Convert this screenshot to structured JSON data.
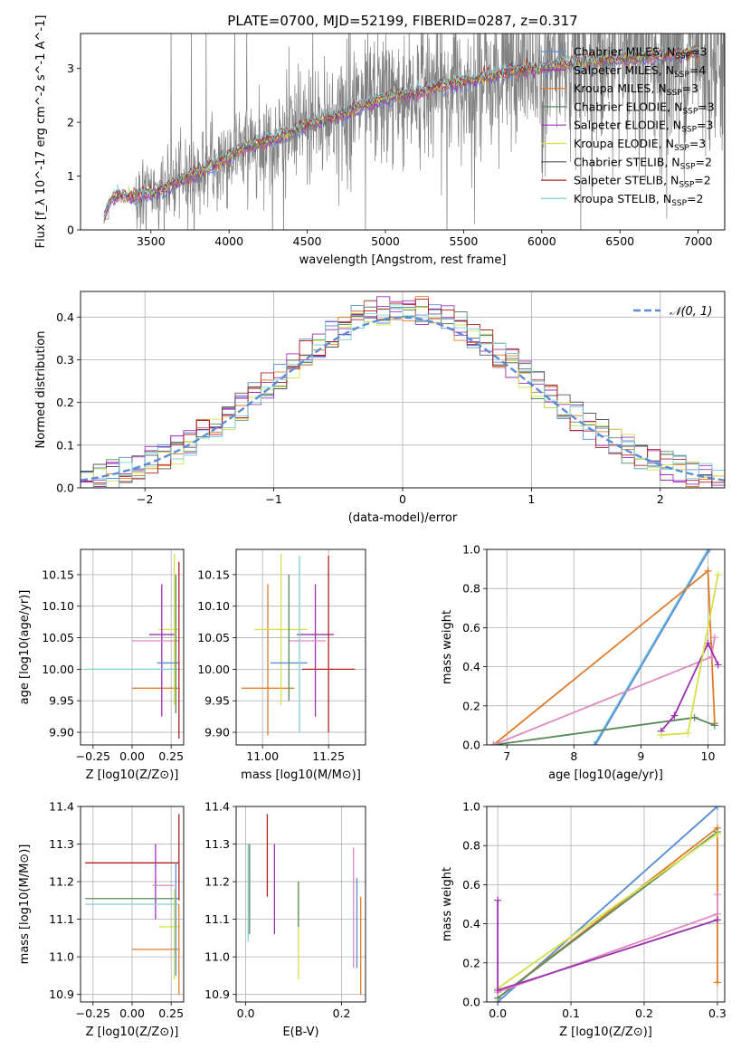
{
  "chart_data": [
    {
      "id": "spectrum",
      "type": "line",
      "title": "PLATE=0700, MJD=52199, FIBERID=0287, z=0.317",
      "xlabel": "wavelength [Angstrom, rest frame]",
      "ylabel": "Flux [f_λ 10^-17 erg cm^-2 s^-1 A^-1]",
      "xlim": [
        3050,
        7170
      ],
      "ylim": [
        0,
        3.65
      ],
      "xticks": [
        3500,
        4000,
        4500,
        5000,
        5500,
        6000,
        6500,
        7000
      ],
      "yticks": [
        0,
        1,
        2,
        3
      ],
      "grid": false,
      "legend_position": "upper right",
      "data_color": "#808080",
      "series": [
        {
          "name": "Chabrier MILES, N_SSP=3",
          "color": "#5b8cd6"
        },
        {
          "name": "Salpeter MILES, N_SSP=4",
          "color": "#9b30b0"
        },
        {
          "name": "Kroupa MILES, N_SSP=3",
          "color": "#e07b2a"
        },
        {
          "name": "Chabrier ELODIE, N_SSP=3",
          "color": "#5a8a5a"
        },
        {
          "name": "Salpeter ELODIE, N_SSP=3",
          "color": "#a030c0"
        },
        {
          "name": "Kroupa ELODIE, N_SSP=3",
          "color": "#d4e04a"
        },
        {
          "name": "Chabrier STELIB, N_SSP=2",
          "color": "#555555"
        },
        {
          "name": "Salpeter STELIB, N_SSP=2",
          "color": "#b02020"
        },
        {
          "name": "Kroupa STELIB, N_SSP=2",
          "color": "#7fd0d6"
        }
      ],
      "model_continuum": {
        "x": [
          3200,
          3250,
          3300,
          3400,
          3500,
          3600,
          3700,
          3800,
          3900,
          4000,
          4100,
          4200,
          4300,
          4400,
          4500,
          4600,
          4700,
          4800,
          4900,
          5000,
          5200,
          5400,
          5600,
          5800,
          6000,
          6200,
          6400,
          6600,
          6800,
          7000
        ],
        "y": [
          0.25,
          0.6,
          0.65,
          0.62,
          0.68,
          0.8,
          0.95,
          1.05,
          1.2,
          1.35,
          1.55,
          1.62,
          1.7,
          1.8,
          1.95,
          2.05,
          2.1,
          2.25,
          2.35,
          2.45,
          2.55,
          2.7,
          2.8,
          2.95,
          3.0,
          3.1,
          3.15,
          3.2,
          3.25,
          3.3
        ]
      }
    },
    {
      "id": "residuals",
      "type": "line",
      "xlabel": "(data-model)/error",
      "ylabel": "Normed distribution",
      "xlim": [
        -2.5,
        2.5
      ],
      "ylim": [
        0,
        0.46
      ],
      "xticks": [
        -2,
        -1,
        0,
        1,
        2
      ],
      "yticks": [
        0.0,
        0.1,
        0.2,
        0.3,
        0.4
      ],
      "grid": true,
      "legend_position": "upper right",
      "gaussian": {
        "name": "𝒩(0, 1)",
        "color": "#5b8cd6"
      },
      "histogram_bin_width": 0.1
    },
    {
      "id": "age_vs_Z",
      "type": "scatter",
      "xlabel": "Z [log10(Z/Z⊙)]",
      "ylabel": "age [log10(age/yr)]",
      "xlim": [
        -0.33,
        0.33
      ],
      "ylim": [
        9.88,
        10.19
      ],
      "xticks": [
        -0.25,
        0.0,
        0.25
      ],
      "yticks": [
        9.9,
        9.95,
        10.0,
        10.05,
        10.1,
        10.15
      ],
      "grid": true,
      "points": [
        {
          "color": "#e07b2a",
          "x": 0.15,
          "xerr": [
            0.15,
            0.15
          ],
          "y": 9.97,
          "yerr": [
            0.0,
            0.0
          ]
        },
        {
          "color": "#d4e04a",
          "x": 0.27,
          "xerr": [
            0.1,
            0.03
          ],
          "y": 10.063,
          "yerr": [
            0.12,
            0.12
          ]
        },
        {
          "color": "#9b30b0",
          "x": 0.19,
          "xerr": [
            0.08,
            0.08
          ],
          "y": 10.055,
          "yerr": [
            0.13,
            0.08
          ]
        },
        {
          "color": "#e088c0",
          "x": 0.15,
          "xerr": [
            0.15,
            0.15
          ],
          "y": 10.045,
          "yerr": [
            0.0,
            0.0
          ]
        },
        {
          "color": "#5b8cd6",
          "x": 0.23,
          "xerr": [
            0.07,
            0.07
          ],
          "y": 10.01,
          "yerr": [
            0.0,
            0.0
          ]
        },
        {
          "color": "#7fd0d6",
          "x": 0.0,
          "xerr": [
            0.3,
            0.3
          ],
          "y": 10.0,
          "yerr": [
            0.0,
            0.0
          ]
        },
        {
          "color": "#5a8a5a",
          "x": 0.28,
          "xerr": [
            0.0,
            0.0
          ],
          "y": 10.04,
          "yerr": [
            0.11,
            0.11
          ]
        },
        {
          "color": "#b02020",
          "x": 0.3,
          "xerr": [
            0.0,
            0.0
          ],
          "y": 10.03,
          "yerr": [
            0.14,
            0.14
          ]
        }
      ]
    },
    {
      "id": "age_vs_mass",
      "type": "scatter",
      "xlabel": "mass [log10(M/M⊙)]",
      "xlim": [
        10.9,
        11.39
      ],
      "ylim": [
        9.88,
        10.19
      ],
      "xticks": [
        11.0,
        11.25
      ],
      "yticks": [
        9.9,
        9.95,
        10.0,
        10.05,
        10.1,
        10.15
      ],
      "grid": true,
      "points": [
        {
          "color": "#e07b2a",
          "x": 11.02,
          "xerr": [
            0.1,
            0.1
          ],
          "y": 9.97,
          "yerr": [
            0.075,
            0.165
          ]
        },
        {
          "color": "#d4e04a",
          "x": 11.07,
          "xerr": [
            0.1,
            0.1
          ],
          "y": 10.063,
          "yerr": [
            0.12,
            0.12
          ]
        },
        {
          "color": "#9b30b0",
          "x": 11.2,
          "xerr": [
            0.07,
            0.07
          ],
          "y": 10.055,
          "yerr": [
            0.13,
            0.08
          ]
        },
        {
          "color": "#e088c0",
          "x": 11.17,
          "xerr": [
            0.07,
            0.07
          ],
          "y": 10.045,
          "yerr": [
            0.0,
            0.0
          ]
        },
        {
          "color": "#5b8cd6",
          "x": 11.1,
          "xerr": [
            0.07,
            0.07
          ],
          "y": 10.01,
          "yerr": [
            0.0,
            0.0
          ]
        },
        {
          "color": "#7fd0d6",
          "x": 11.14,
          "xerr": [
            0.0,
            0.0
          ],
          "y": 10.04,
          "yerr": [
            0.14,
            0.14
          ]
        },
        {
          "color": "#5a8a5a",
          "x": 11.1,
          "xerr": [
            0.0,
            0.0
          ],
          "y": 10.05,
          "yerr": [
            0.1,
            0.1
          ]
        },
        {
          "color": "#b02020",
          "x": 11.25,
          "xerr": [
            0.1,
            0.1
          ],
          "y": 10.0,
          "yerr": [
            0.1,
            0.18
          ]
        }
      ]
    },
    {
      "id": "massweight_vs_age",
      "type": "line",
      "xlabel": "age [log10(age/yr)]",
      "ylabel": "mass weight",
      "xlim": [
        6.7,
        10.25
      ],
      "ylim": [
        0,
        1
      ],
      "xticks": [
        7,
        8,
        9,
        10
      ],
      "yticks": [
        0.0,
        0.2,
        0.4,
        0.6,
        0.8,
        1.0
      ],
      "grid": true,
      "series": [
        {
          "color": "#7fd0d6",
          "x": [
            8.3,
            10.0
          ],
          "y": [
            0.0,
            1.0
          ]
        },
        {
          "color": "#5b8cd6",
          "x": [
            8.32,
            10.02
          ],
          "y": [
            0.0,
            1.0
          ]
        },
        {
          "color": "#e07b2a",
          "x": [
            6.8,
            10.0,
            10.1
          ],
          "y": [
            0.0,
            0.89,
            0.11
          ]
        },
        {
          "color": "#5a8a5a",
          "x": [
            6.8,
            9.8,
            10.1
          ],
          "y": [
            0.0,
            0.14,
            0.1
          ]
        },
        {
          "color": "#e088c0",
          "x": [
            6.8,
            10.05,
            10.1
          ],
          "y": [
            0.0,
            0.45,
            0.55
          ]
        },
        {
          "color": "#9b30b0",
          "x": [
            9.3,
            9.5,
            10.0,
            10.15
          ],
          "y": [
            0.07,
            0.15,
            0.52,
            0.41
          ]
        },
        {
          "color": "#d4e04a",
          "x": [
            9.3,
            9.7,
            10.15
          ],
          "y": [
            0.05,
            0.06,
            0.87
          ]
        }
      ]
    },
    {
      "id": "mass_vs_Z",
      "type": "scatter",
      "xlabel": "Z [log10(Z/Z⊙)]",
      "ylabel": "mass [log10(M/M⊙)]",
      "xlim": [
        -0.33,
        0.33
      ],
      "ylim": [
        10.88,
        11.4
      ],
      "xticks": [
        -0.25,
        0.0,
        0.25
      ],
      "yticks": [
        10.9,
        11.0,
        11.1,
        11.2,
        11.3,
        11.4
      ],
      "grid": true,
      "points": [
        {
          "color": "#b02020",
          "x": 0.0,
          "xerr": [
            0.3,
            0.3
          ],
          "y": 11.25,
          "yerr": [
            0.0,
            0.0
          ]
        },
        {
          "color": "#b02020",
          "x": 0.3,
          "xerr": [
            0.0,
            0.0
          ],
          "y": 11.25,
          "yerr": [
            0.1,
            0.13
          ]
        },
        {
          "color": "#9b30b0",
          "x": 0.15,
          "xerr": [
            0.0,
            0.0
          ],
          "y": 11.2,
          "yerr": [
            0.1,
            0.1
          ]
        },
        {
          "color": "#e088c0",
          "x": 0.2,
          "xerr": [
            0.07,
            0.07
          ],
          "y": 11.19,
          "yerr": [
            0.0,
            0.0
          ]
        },
        {
          "color": "#5a8a5a",
          "x": 0.0,
          "xerr": [
            0.3,
            0.3
          ],
          "y": 11.155,
          "yerr": [
            0.0,
            0.0
          ]
        },
        {
          "color": "#7fd0d6",
          "x": 0.0,
          "xerr": [
            0.3,
            0.3
          ],
          "y": 11.14,
          "yerr": [
            0.0,
            0.0
          ]
        },
        {
          "color": "#d4e04a",
          "x": 0.27,
          "xerr": [
            0.1,
            0.03
          ],
          "y": 11.08,
          "yerr": [
            0.14,
            0.1
          ]
        },
        {
          "color": "#e07b2a",
          "x": 0.15,
          "xerr": [
            0.15,
            0.15
          ],
          "y": 11.02,
          "yerr": [
            0.0,
            0.0
          ]
        },
        {
          "color": "#e07b2a",
          "x": 0.3,
          "xerr": [
            0.0,
            0.0
          ],
          "y": 11.02,
          "yerr": [
            0.12,
            0.12
          ]
        },
        {
          "color": "#5b8cd6",
          "x": 0.28,
          "xerr": [
            0.0,
            0.0
          ],
          "y": 11.1,
          "yerr": [
            0.15,
            0.15
          ]
        }
      ]
    },
    {
      "id": "mass_vs_EBV",
      "type": "scatter",
      "xlabel": "E(B-V)",
      "xlim": [
        -0.02,
        0.25
      ],
      "ylim": [
        10.88,
        11.4
      ],
      "xticks": [
        0.0,
        0.2
      ],
      "yticks": [
        10.9,
        11.0,
        11.1,
        11.2,
        11.3,
        11.4
      ],
      "grid": true,
      "points": [
        {
          "color": "#7fd0d6",
          "x": 0.005,
          "xerr": [
            0.0,
            0.0
          ],
          "y": 11.17,
          "yerr": [
            0.13,
            0.13
          ]
        },
        {
          "color": "#5a8a5a",
          "x": 0.008,
          "xerr": [
            0.0,
            0.0
          ],
          "y": 11.18,
          "yerr": [
            0.12,
            0.12
          ]
        },
        {
          "color": "#b02020",
          "x": 0.045,
          "xerr": [
            0.0,
            0.0
          ],
          "y": 11.27,
          "yerr": [
            0.11,
            0.11
          ]
        },
        {
          "color": "#9b30b0",
          "x": 0.06,
          "xerr": [
            0.0,
            0.0
          ],
          "y": 11.18,
          "yerr": [
            0.12,
            0.12
          ]
        },
        {
          "color": "#d4e04a",
          "x": 0.11,
          "xerr": [
            0.0,
            0.0
          ],
          "y": 11.07,
          "yerr": [
            0.13,
            0.13
          ]
        },
        {
          "color": "#5a8a5a",
          "x": 0.11,
          "xerr": [
            0.0,
            0.0
          ],
          "y": 11.14,
          "yerr": [
            0.06,
            0.06
          ]
        },
        {
          "color": "#e088c0",
          "x": 0.225,
          "xerr": [
            0.0,
            0.0
          ],
          "y": 11.13,
          "yerr": [
            0.16,
            0.16
          ]
        },
        {
          "color": "#5b8cd6",
          "x": 0.232,
          "xerr": [
            0.0,
            0.0
          ],
          "y": 11.09,
          "yerr": [
            0.12,
            0.12
          ]
        },
        {
          "color": "#e07b2a",
          "x": 0.24,
          "xerr": [
            0.0,
            0.0
          ],
          "y": 11.03,
          "yerr": [
            0.13,
            0.13
          ]
        }
      ]
    },
    {
      "id": "massweight_vs_Z",
      "type": "line",
      "xlabel": "Z [log10(Z/Z⊙)]",
      "ylabel": "mass weight",
      "xlim": [
        -0.015,
        0.31
      ],
      "ylim": [
        0,
        1
      ],
      "xticks": [
        0.0,
        0.1,
        0.2,
        0.3
      ],
      "yticks": [
        0.0,
        0.2,
        0.4,
        0.6,
        0.8,
        1.0
      ],
      "grid": true,
      "series": [
        {
          "color": "#7fd0d6",
          "x": [
            0.0,
            0.3
          ],
          "y": [
            0.0,
            1.0
          ]
        },
        {
          "color": "#5b8cd6",
          "x": [
            0.0,
            0.3
          ],
          "y": [
            0.0,
            1.0
          ]
        },
        {
          "color": "#e07b2a",
          "x": [
            0.0,
            0.3,
            0.3
          ],
          "y": [
            0.02,
            0.89,
            0.1
          ]
        },
        {
          "color": "#5a8a5a",
          "x": [
            0.0,
            0.3
          ],
          "y": [
            0.02,
            0.87
          ]
        },
        {
          "color": "#d4e04a",
          "x": [
            0.0,
            0.3
          ],
          "y": [
            0.07,
            0.86
          ]
        },
        {
          "color": "#e088c0",
          "x": [
            0.0,
            0.3,
            0.3
          ],
          "y": [
            0.05,
            0.45,
            0.55
          ]
        },
        {
          "color": "#9b30b0",
          "x": [
            0.0,
            0.0,
            0.3
          ],
          "y": [
            0.52,
            0.06,
            0.42
          ]
        }
      ]
    }
  ]
}
